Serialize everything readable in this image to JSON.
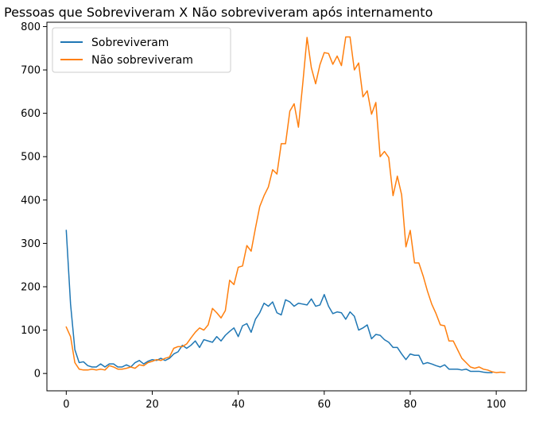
{
  "chart_data": {
    "type": "line",
    "title": "Pessoas que Sobreviveram X Não sobreviveram após internamento",
    "xlabel": "",
    "ylabel": "",
    "xlim": [
      -4.5,
      107
    ],
    "ylim": [
      -40,
      810
    ],
    "xticks": [
      0,
      20,
      40,
      60,
      80,
      100
    ],
    "yticks": [
      0,
      100,
      200,
      300,
      400,
      500,
      600,
      700,
      800
    ],
    "grid": false,
    "legend_position": "top-left",
    "series": [
      {
        "name": "Sobreviveram",
        "color": "#1f77b4",
        "x": [
          0,
          1,
          2,
          3,
          4,
          5,
          6,
          7,
          8,
          9,
          10,
          11,
          12,
          13,
          14,
          15,
          16,
          17,
          18,
          19,
          20,
          21,
          22,
          23,
          24,
          25,
          26,
          27,
          28,
          29,
          30,
          31,
          32,
          33,
          34,
          35,
          36,
          37,
          38,
          39,
          40,
          41,
          42,
          43,
          44,
          45,
          46,
          47,
          48,
          49,
          50,
          51,
          52,
          53,
          54,
          55,
          56,
          57,
          58,
          59,
          60,
          61,
          62,
          63,
          64,
          65,
          66,
          67,
          68,
          69,
          70,
          71,
          72,
          73,
          74,
          75,
          76,
          77,
          78,
          79,
          80,
          81,
          82,
          83,
          84,
          85,
          86,
          87,
          88,
          89,
          90,
          91,
          92,
          93,
          94,
          95,
          96,
          97,
          98,
          99
        ],
        "y": [
          330,
          160,
          55,
          25,
          27,
          18,
          15,
          15,
          22,
          15,
          22,
          22,
          15,
          15,
          20,
          15,
          25,
          30,
          22,
          28,
          32,
          30,
          35,
          30,
          35,
          45,
          50,
          65,
          58,
          65,
          75,
          60,
          78,
          75,
          72,
          85,
          75,
          88,
          97,
          105,
          85,
          110,
          115,
          95,
          125,
          140,
          162,
          155,
          165,
          140,
          135,
          170,
          165,
          155,
          162,
          160,
          158,
          172,
          155,
          158,
          182,
          155,
          138,
          142,
          140,
          125,
          142,
          132,
          100,
          105,
          112,
          80,
          90,
          88,
          78,
          72,
          60,
          60,
          45,
          32,
          45,
          42,
          42,
          22,
          25,
          22,
          18,
          15,
          20,
          10,
          10,
          10,
          8,
          10,
          5,
          5,
          5,
          3,
          2,
          2
        ]
      },
      {
        "name": "Não sobreviveram",
        "color": "#ff7f0e",
        "x": [
          0,
          1,
          2,
          3,
          4,
          5,
          6,
          7,
          8,
          9,
          10,
          11,
          12,
          13,
          14,
          15,
          16,
          17,
          18,
          19,
          20,
          21,
          22,
          23,
          24,
          25,
          26,
          27,
          28,
          29,
          30,
          31,
          32,
          33,
          34,
          35,
          36,
          37,
          38,
          39,
          40,
          41,
          42,
          43,
          44,
          45,
          46,
          47,
          48,
          49,
          50,
          51,
          52,
          53,
          54,
          55,
          56,
          57,
          58,
          59,
          60,
          61,
          62,
          63,
          64,
          65,
          66,
          67,
          68,
          69,
          70,
          71,
          72,
          73,
          74,
          75,
          76,
          77,
          78,
          79,
          80,
          81,
          82,
          83,
          84,
          85,
          86,
          87,
          88,
          89,
          90,
          91,
          92,
          93,
          94,
          95,
          96,
          97,
          98,
          99,
          100,
          101,
          102
        ],
        "y": [
          107,
          85,
          25,
          10,
          8,
          8,
          10,
          8,
          10,
          8,
          18,
          15,
          10,
          10,
          12,
          15,
          12,
          20,
          18,
          25,
          28,
          32,
          30,
          35,
          38,
          58,
          62,
          62,
          68,
          82,
          95,
          105,
          100,
          112,
          150,
          140,
          128,
          145,
          215,
          205,
          245,
          248,
          295,
          282,
          335,
          385,
          410,
          430,
          470,
          460,
          530,
          530,
          605,
          622,
          568,
          668,
          775,
          705,
          668,
          712,
          740,
          738,
          713,
          732,
          710,
          776,
          776,
          700,
          716,
          638,
          652,
          598,
          625,
          500,
          512,
          498,
          410,
          455,
          412,
          292,
          330,
          255,
          255,
          225,
          190,
          160,
          138,
          112,
          110,
          75,
          75,
          55,
          35,
          25,
          15,
          12,
          15,
          10,
          8,
          4,
          2,
          3,
          2
        ]
      }
    ]
  }
}
